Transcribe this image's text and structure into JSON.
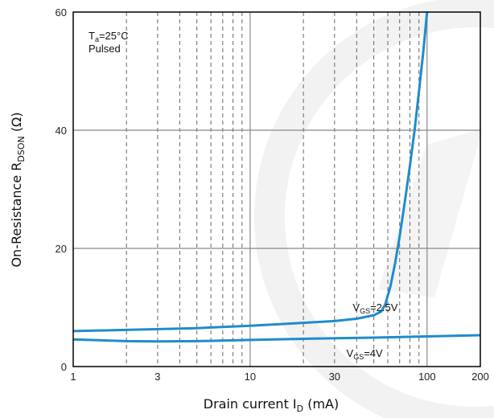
{
  "chart_data": {
    "type": "line",
    "x_scale": "log",
    "xlim": [
      1,
      200
    ],
    "ylim": [
      0,
      60
    ],
    "x_ticks": [
      {
        "value": 1,
        "label": "1"
      },
      {
        "value": 3,
        "label": "3"
      },
      {
        "value": 10,
        "label": "10"
      },
      {
        "value": 30,
        "label": "30"
      },
      {
        "value": 100,
        "label": "100"
      },
      {
        "value": 200,
        "label": "200"
      }
    ],
    "y_ticks": [
      {
        "value": 0,
        "label": "0"
      },
      {
        "value": 20,
        "label": "20"
      },
      {
        "value": 40,
        "label": "40"
      },
      {
        "value": 60,
        "label": "60"
      }
    ],
    "x_major_gridlines": [
      10,
      100
    ],
    "x_minor_gridlines": [
      2,
      3,
      4,
      5,
      6,
      7,
      8,
      9,
      20,
      30,
      40,
      50,
      60,
      70,
      80,
      90
    ],
    "y_major_gridlines": [
      20,
      40
    ],
    "xlabel": {
      "main": "Drain current I",
      "sub": "D",
      "unit": " (mA)"
    },
    "ylabel": {
      "main": "On-Resistance R",
      "sub": "DSON",
      "unit": " (Ω)"
    },
    "conditions": {
      "temp_main": "T",
      "temp_sub": "a",
      "temp_value": "=25°C",
      "mode": "Pulsed"
    },
    "series_color": "#1e8ccd",
    "series": [
      {
        "label_main": "V",
        "label_sub": "GS",
        "label_value": "=2.5V",
        "label_anchor": [
          38,
          9.4
        ],
        "x": [
          1,
          2,
          5,
          10,
          20,
          30,
          40,
          50,
          55,
          58,
          62,
          66,
          70,
          75,
          80,
          85,
          90,
          95,
          100
        ],
        "y": [
          6.0,
          6.2,
          6.5,
          6.9,
          7.4,
          7.7,
          8.1,
          8.7,
          9.3,
          10.5,
          13.5,
          17.5,
          22.0,
          28.0,
          34.0,
          40.0,
          46.5,
          53.0,
          60.0
        ]
      },
      {
        "label_main": "V",
        "label_sub": "GS",
        "label_value": "=4V",
        "label_anchor": [
          35,
          1.6
        ],
        "x": [
          1,
          2,
          3,
          5,
          10,
          20,
          50,
          100,
          200
        ],
        "y": [
          4.6,
          4.3,
          4.25,
          4.3,
          4.5,
          4.7,
          4.9,
          5.1,
          5.3
        ]
      }
    ]
  }
}
